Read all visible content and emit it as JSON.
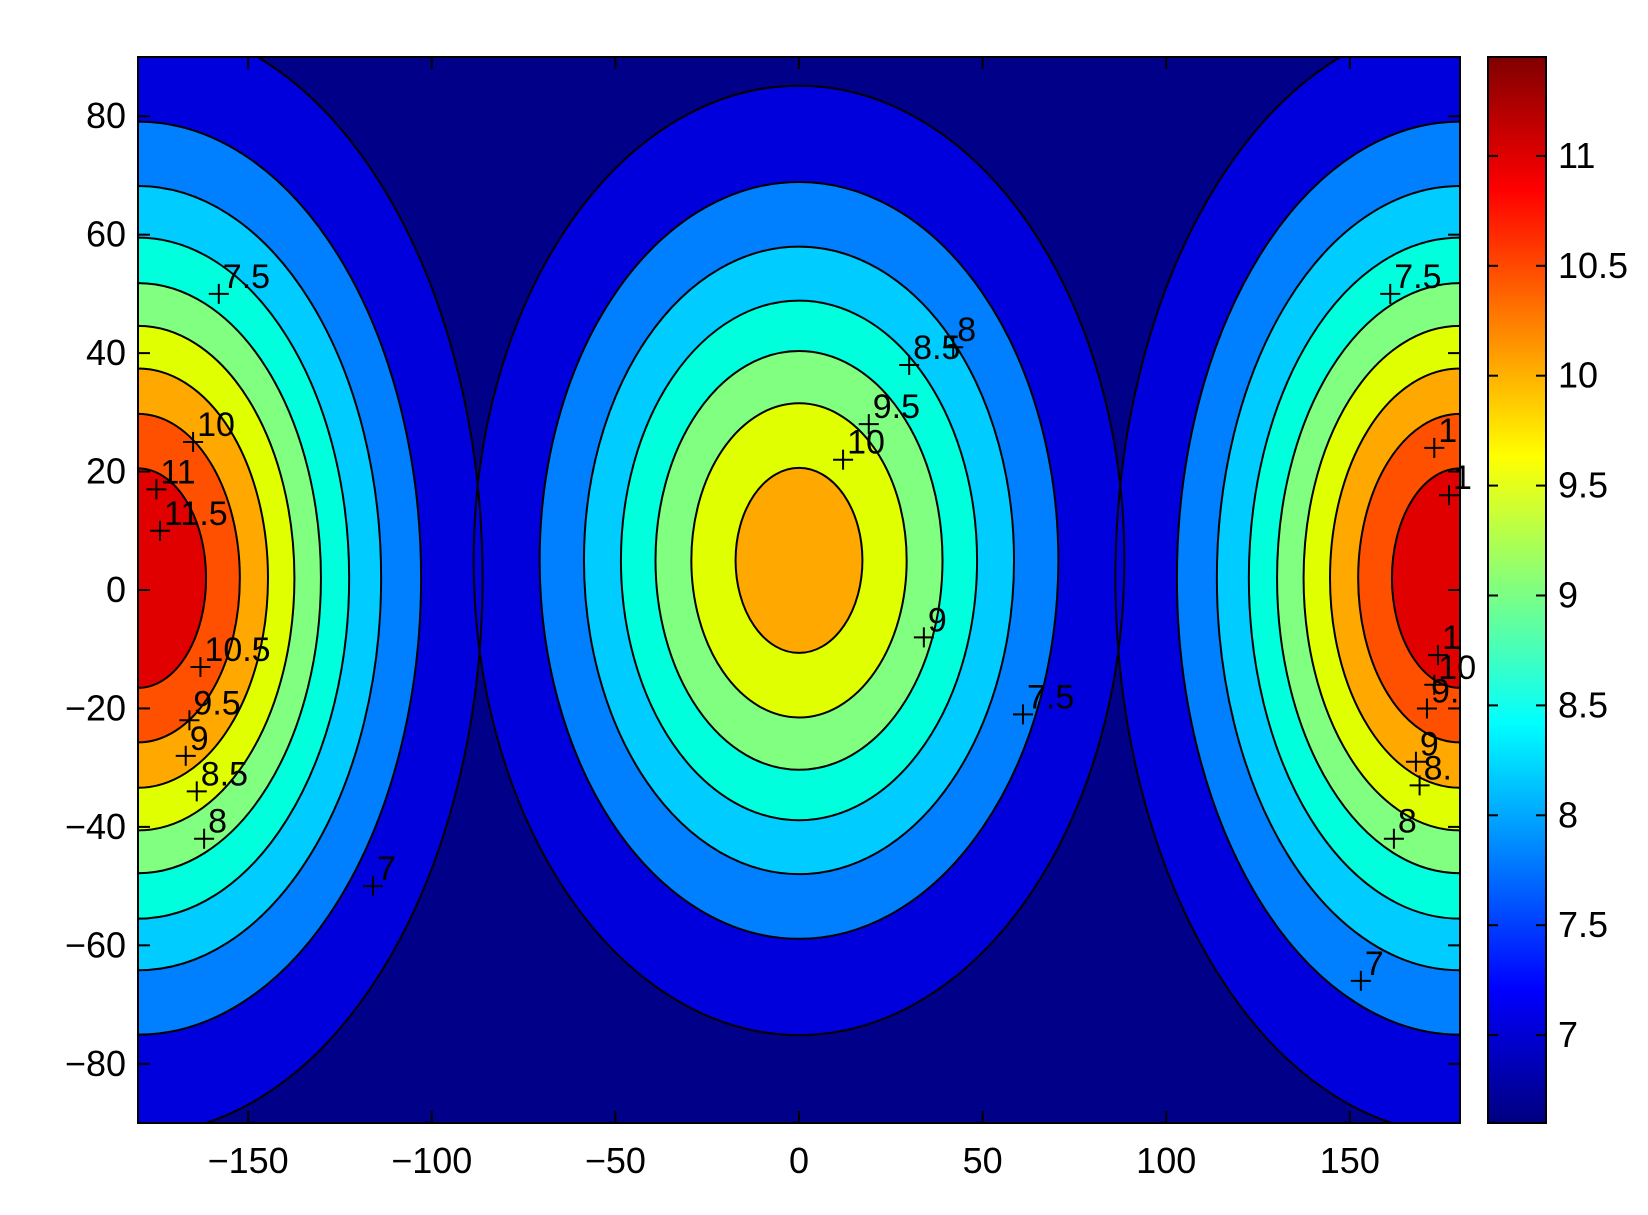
{
  "chart_data": {
    "type": "contour",
    "title": "",
    "xlabel": "",
    "ylabel": "",
    "xlim": [
      -180,
      180
    ],
    "ylim": [
      -90,
      90
    ],
    "x_ticks": [
      -150,
      -100,
      -50,
      0,
      50,
      100,
      150
    ],
    "x_tick_labels": [
      "−150",
      "−100",
      "−50",
      "0",
      "50",
      "100",
      "150"
    ],
    "y_ticks": [
      80,
      60,
      40,
      20,
      0,
      -20,
      -40,
      -60,
      -80
    ],
    "y_tick_labels": [
      "80",
      "60",
      "40",
      "20",
      "0",
      "−20",
      "−40",
      "−60",
      "−80"
    ],
    "levels": [
      7,
      7.5,
      8,
      8.5,
      9,
      9.5,
      10,
      10.5,
      11,
      11.5
    ],
    "level_colors": [
      "#000088",
      "#0000dd",
      "#0080ff",
      "#00ccff",
      "#00ffdd",
      "#80ff80",
      "#e0ff00",
      "#ffa800",
      "#ff5000",
      "#e00000",
      "#800000"
    ],
    "colorbar": {
      "range": [
        6.6,
        11.45
      ],
      "ticks": [
        7,
        7.5,
        8,
        8.5,
        9,
        9.5,
        10,
        10.5,
        11
      ],
      "tick_labels": [
        "7",
        "7.5",
        "8",
        "8.5",
        "9",
        "9.5",
        "10",
        "10.5",
        "11"
      ]
    },
    "peaks": [
      {
        "x": -180,
        "y": 2,
        "max": 11.45
      },
      {
        "x": 180,
        "y": 2,
        "max": 11.45
      },
      {
        "x": 0,
        "y": 5,
        "max": 10.3
      }
    ],
    "contour_labels": [
      {
        "text": "7.5",
        "x": -158,
        "y": 50
      },
      {
        "text": "10",
        "x": -165,
        "y": 25
      },
      {
        "text": "11",
        "x": -175,
        "y": 17
      },
      {
        "text": "11.5",
        "x": -174,
        "y": 10
      },
      {
        "text": "10.5",
        "x": -163,
        "y": -13
      },
      {
        "text": "9.5",
        "x": -166,
        "y": -22
      },
      {
        "text": "9",
        "x": -167,
        "y": -28
      },
      {
        "text": "8.5",
        "x": -164,
        "y": -34
      },
      {
        "text": "8",
        "x": -162,
        "y": -42
      },
      {
        "text": "7",
        "x": -116,
        "y": -50
      },
      {
        "text": "8.5",
        "x": 30,
        "y": 38
      },
      {
        "text": "8",
        "x": 42,
        "y": 41
      },
      {
        "text": "9.5",
        "x": 19,
        "y": 28
      },
      {
        "text": "10",
        "x": 12,
        "y": 22
      },
      {
        "text": "9",
        "x": 34,
        "y": -8
      },
      {
        "text": "7.5",
        "x": 61,
        "y": -21
      },
      {
        "text": "7.5",
        "x": 161,
        "y": 50
      },
      {
        "text": "7",
        "x": 153,
        "y": -66
      },
      {
        "text": "1",
        "x": 173,
        "y": 24
      },
      {
        "text": "1",
        "x": 177,
        "y": 16
      },
      {
        "text": "1",
        "x": 174,
        "y": -11
      },
      {
        "text": "10",
        "x": 173,
        "y": -16
      },
      {
        "text": "9.",
        "x": 171,
        "y": -20
      },
      {
        "text": "9",
        "x": 168,
        "y": -29
      },
      {
        "text": "8.",
        "x": 169,
        "y": -33
      },
      {
        "text": "8",
        "x": 162,
        "y": -42
      }
    ]
  }
}
